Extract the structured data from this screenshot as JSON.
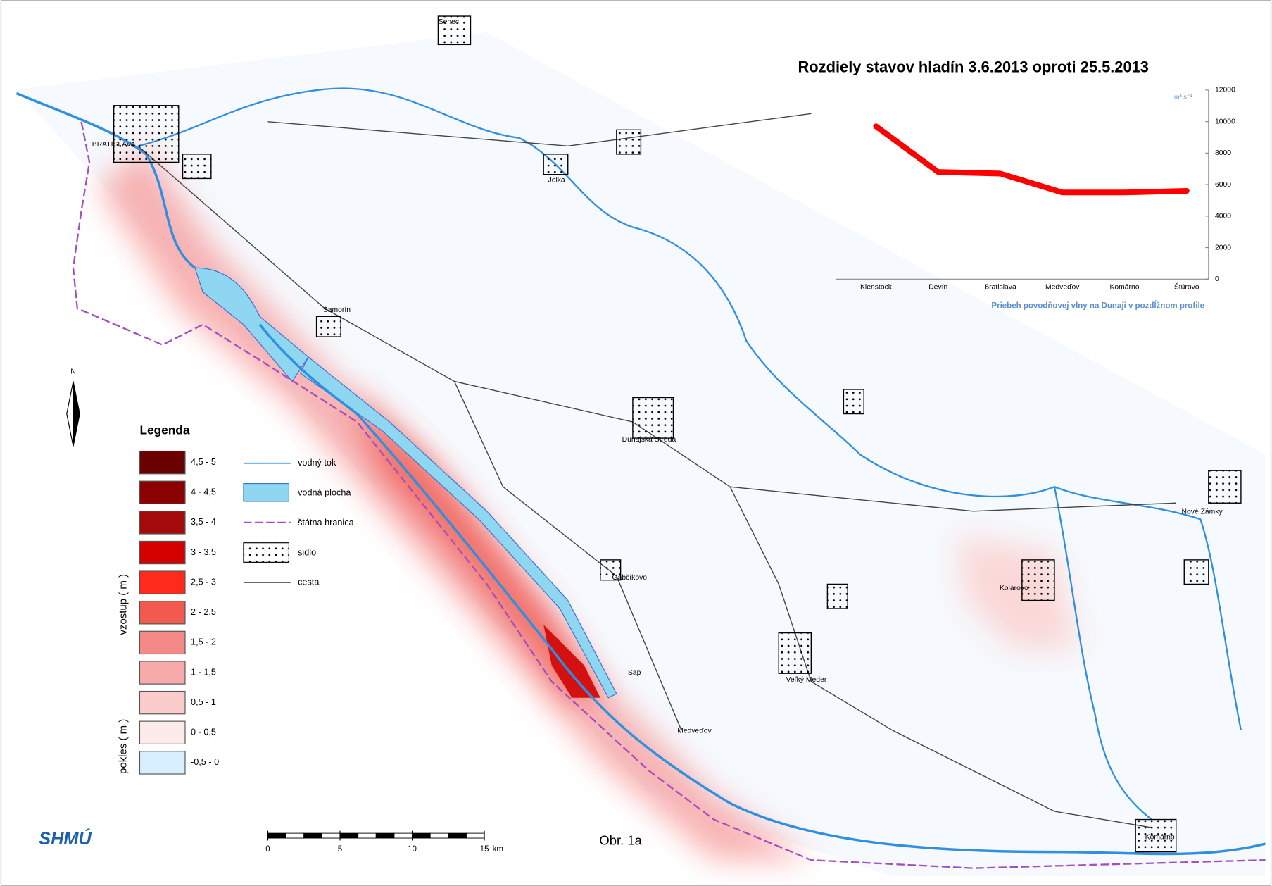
{
  "title": "Rozdiely stavov hladín 3.6.2013 oproti 25.5.2013",
  "chart_data": {
    "type": "line",
    "caption": "Priebeh povodňovej vlny na Dunaji v pozdĺžnom  profile",
    "unit": "m³.s⁻¹",
    "categories": [
      "Kienstock",
      "Devín",
      "Bratislava",
      "Medveďov",
      "Komárno",
      "Štúrovo"
    ],
    "series": [
      {
        "color": "#ff0000",
        "values": [
          9700,
          6800,
          6700,
          5500,
          5500,
          5600
        ]
      }
    ],
    "ylim": [
      0,
      12000
    ],
    "yticks": [
      0,
      2000,
      4000,
      6000,
      8000,
      10000,
      12000
    ]
  },
  "legend": {
    "title": "Legenda",
    "group_rise": "vzostup ( m )",
    "group_fall": "pokles ( m )",
    "classes": [
      {
        "label": "4,5 - 5",
        "color": "#6b0000"
      },
      {
        "label": "4 - 4,5",
        "color": "#8b0000"
      },
      {
        "label": "3,5 - 4",
        "color": "#a50a0a"
      },
      {
        "label": "3 - 3,5",
        "color": "#d40000"
      },
      {
        "label": "2,5 - 3",
        "color": "#ff2a1a"
      },
      {
        "label": "2 - 2,5",
        "color": "#f25a50"
      },
      {
        "label": "1,5 - 2",
        "color": "#f48a88"
      },
      {
        "label": "1 - 1,5",
        "color": "#f7aaaa"
      },
      {
        "label": "0,5 - 1",
        "color": "#fbcccc"
      },
      {
        "label": "0 - 0,5",
        "color": "#fdeaea"
      },
      {
        "label": "-0,5 - 0",
        "color": "#d8efff"
      }
    ],
    "symbols": [
      "vodný tok",
      "vodná plocha",
      "štátna hranica",
      "sidlo",
      "cesta"
    ]
  },
  "places": [
    "Senec",
    "BRATISLAVA",
    "Jelka",
    "Šamorín",
    "Dunajská Streda",
    "Gabčíkovo",
    "Sap",
    "Medveďov",
    "Veľký Meder",
    "Kolárovo",
    "Nové Zámky",
    "Komárno"
  ],
  "scale_bar": {
    "ticks": [
      0,
      5,
      10,
      15
    ],
    "unit": "km"
  },
  "north": "N",
  "figure_label": "Obr. 1a",
  "logo": "SHMÚ"
}
